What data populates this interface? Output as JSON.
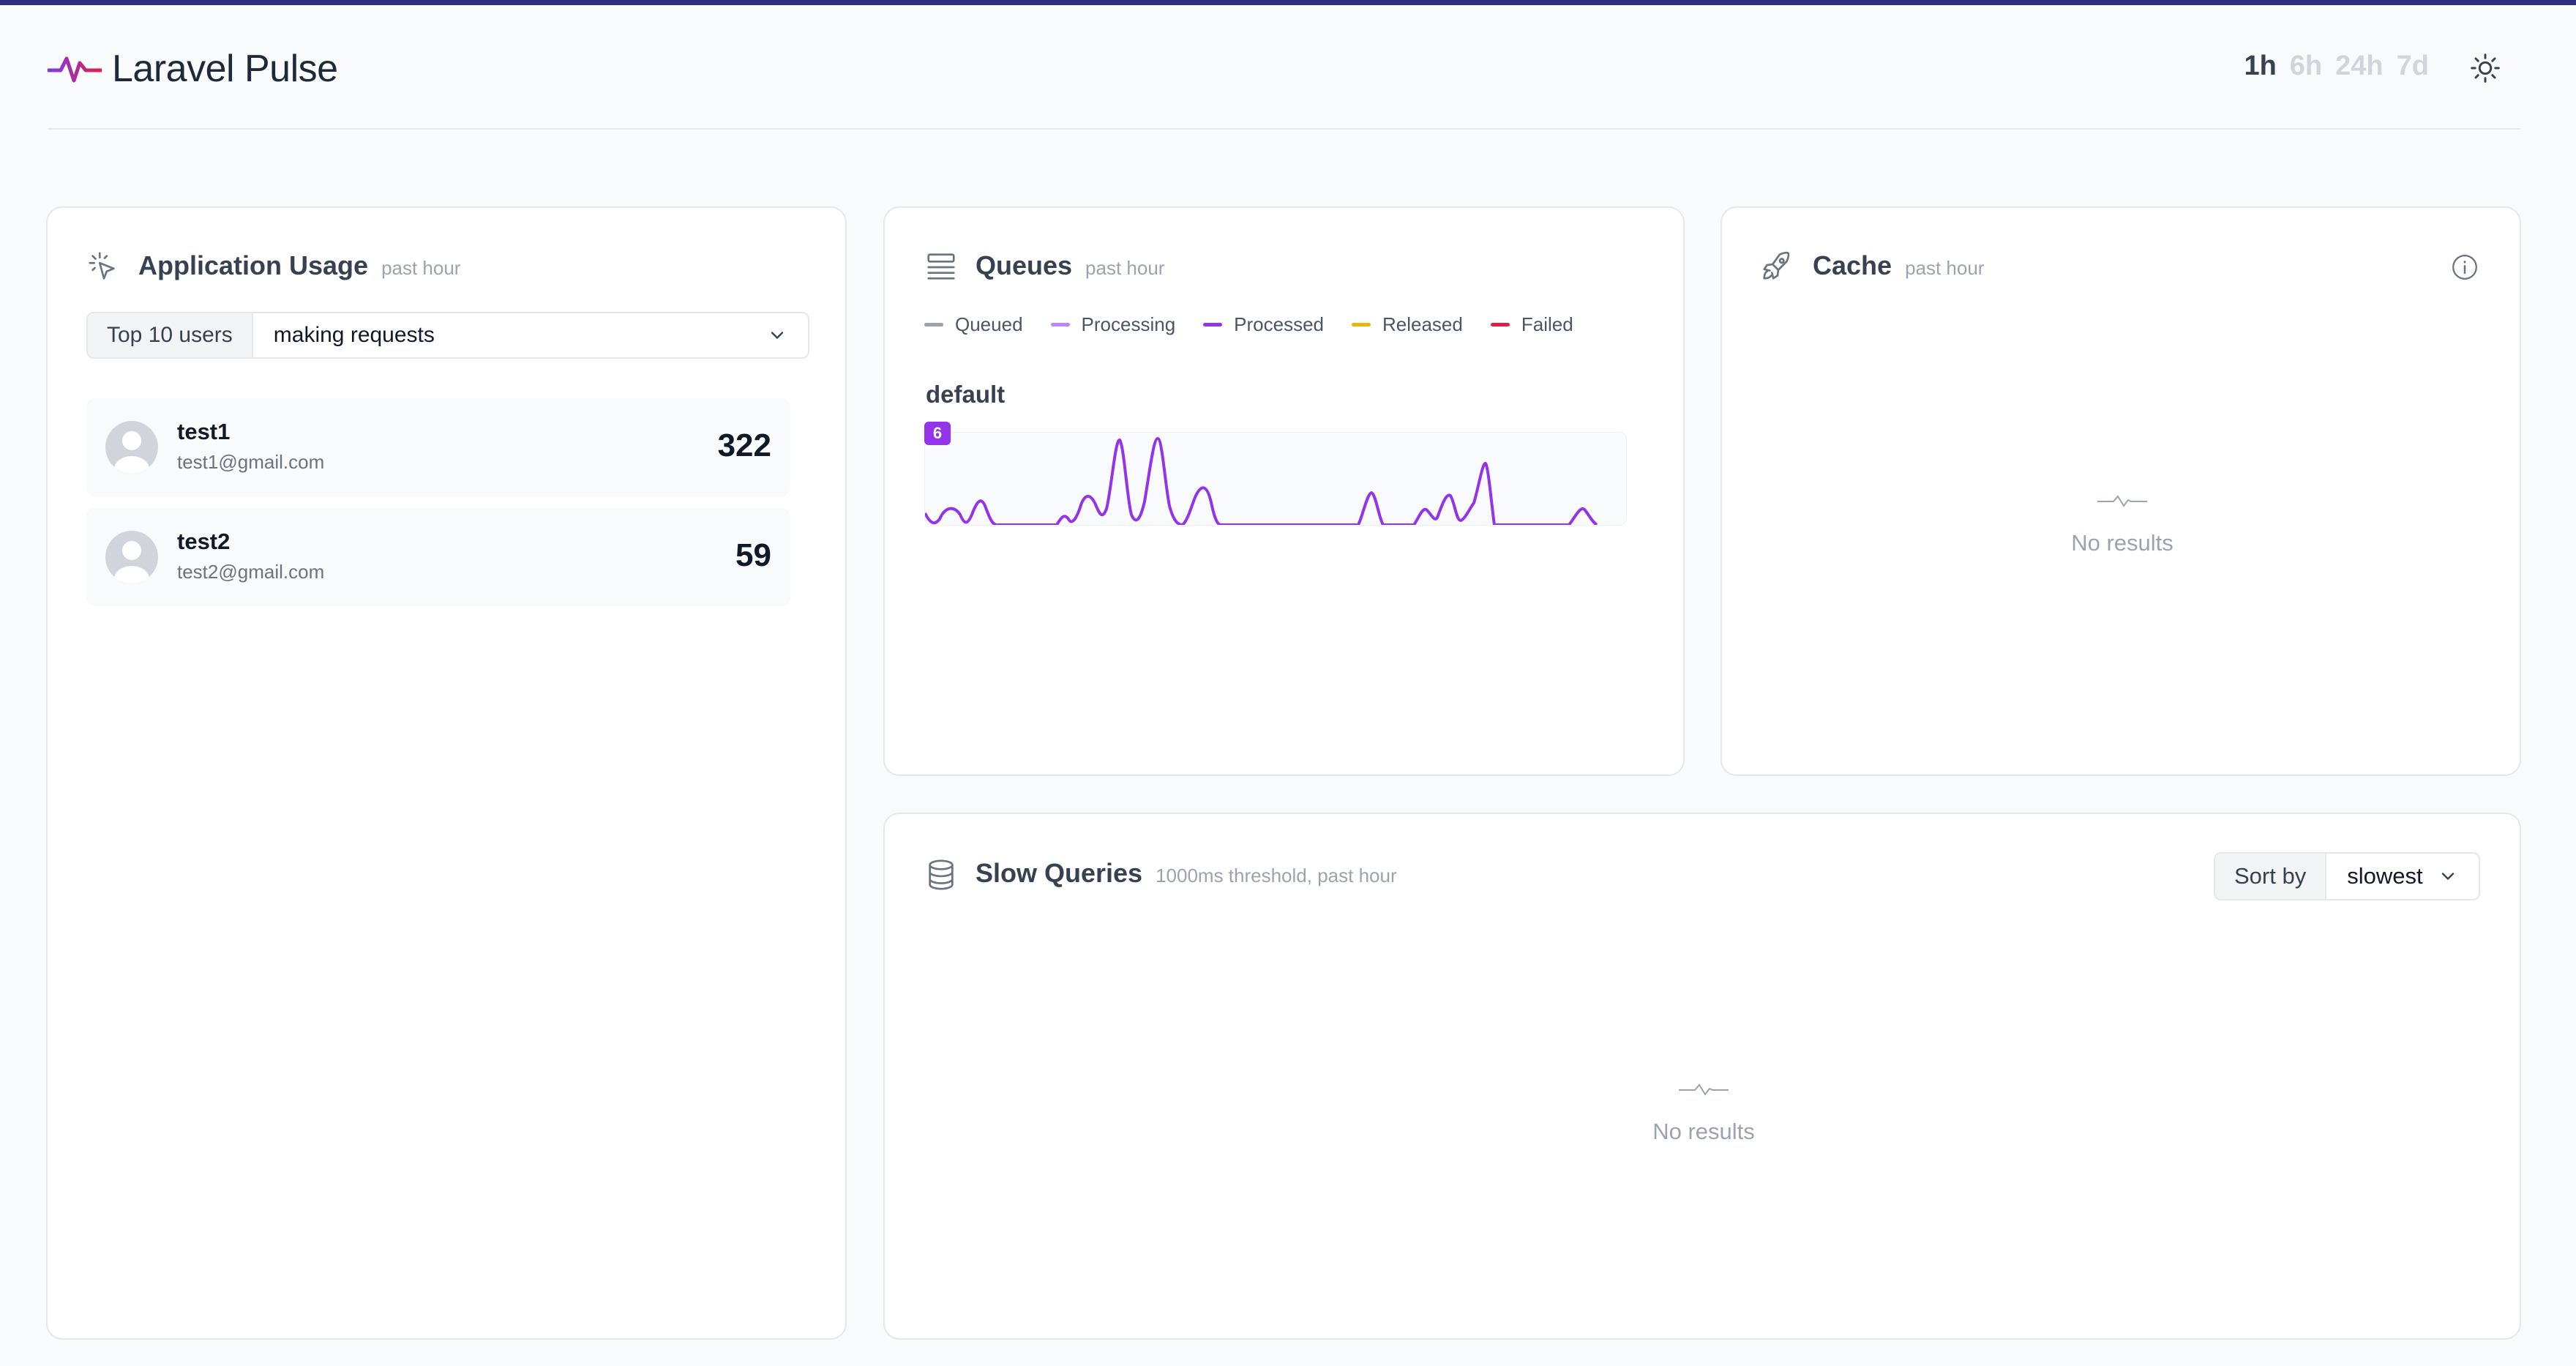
{
  "app": {
    "title": "Laravel Pulse",
    "periods": [
      "1h",
      "6h",
      "24h",
      "7d"
    ],
    "active_period": "1h",
    "theme_icon": "sun-icon"
  },
  "colors": {
    "accent": "#312e81",
    "queued": "#9ca3af",
    "processing": "#c084fc",
    "processed": "#9333ea",
    "released": "#eab308",
    "failed": "#e11d48"
  },
  "application_usage": {
    "title": "Application Usage",
    "subtitle": "past hour",
    "select_label": "Top 10 users",
    "select_value": "making requests",
    "users": [
      {
        "name": "test1",
        "email": "test1@gmail.com",
        "count": "322"
      },
      {
        "name": "test2",
        "email": "test2@gmail.com",
        "count": "59"
      }
    ]
  },
  "queues": {
    "title": "Queues",
    "subtitle": "past hour",
    "legend": [
      "Queued",
      "Processing",
      "Processed",
      "Released",
      "Failed"
    ],
    "queue_name": "default",
    "max_label": "6"
  },
  "cache": {
    "title": "Cache",
    "subtitle": "past hour",
    "empty_text": "No results"
  },
  "slow_queries": {
    "title": "Slow Queries",
    "subtitle": "1000ms threshold, past hour",
    "sort_label": "Sort by",
    "sort_value": "slowest",
    "empty_text": "No results"
  }
}
